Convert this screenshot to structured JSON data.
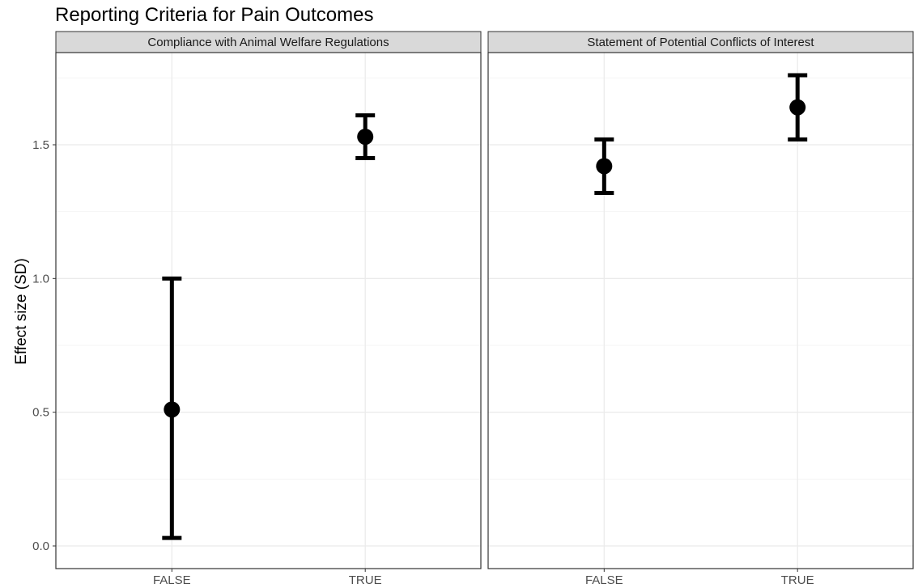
{
  "chart_data": {
    "type": "scatter",
    "title": "Reporting Criteria for Pain Outcomes",
    "ylabel": "Effect size (SD)",
    "xlabel": "",
    "ylim": [
      -0.1,
      1.85
    ],
    "yticks": [
      "0.0",
      "0.5",
      "1.0",
      "1.5"
    ],
    "ytick_values": [
      0,
      0.5,
      1.0,
      1.5
    ],
    "grid": true,
    "colors": {
      "point": "#000000",
      "strip_fill": "#d9d9d9",
      "panel_border": "#333333",
      "grid_major": "#ebebeb",
      "grid_minor": "#f5f5f5"
    },
    "panels": [
      {
        "name": "Compliance with Animal Welfare Regulations",
        "categories": [
          "FALSE",
          "TRUE"
        ],
        "points": [
          {
            "x": "FALSE",
            "y": 0.51,
            "ymin": 0.03,
            "ymax": 1.0
          },
          {
            "x": "TRUE",
            "y": 1.53,
            "ymin": 1.45,
            "ymax": 1.61
          }
        ]
      },
      {
        "name": "Statement of Potential Conflicts of Interest",
        "categories": [
          "FALSE",
          "TRUE"
        ],
        "points": [
          {
            "x": "FALSE",
            "y": 1.42,
            "ymin": 1.32,
            "ymax": 1.52
          },
          {
            "x": "TRUE",
            "y": 1.64,
            "ymin": 1.52,
            "ymax": 1.76
          }
        ]
      }
    ]
  }
}
